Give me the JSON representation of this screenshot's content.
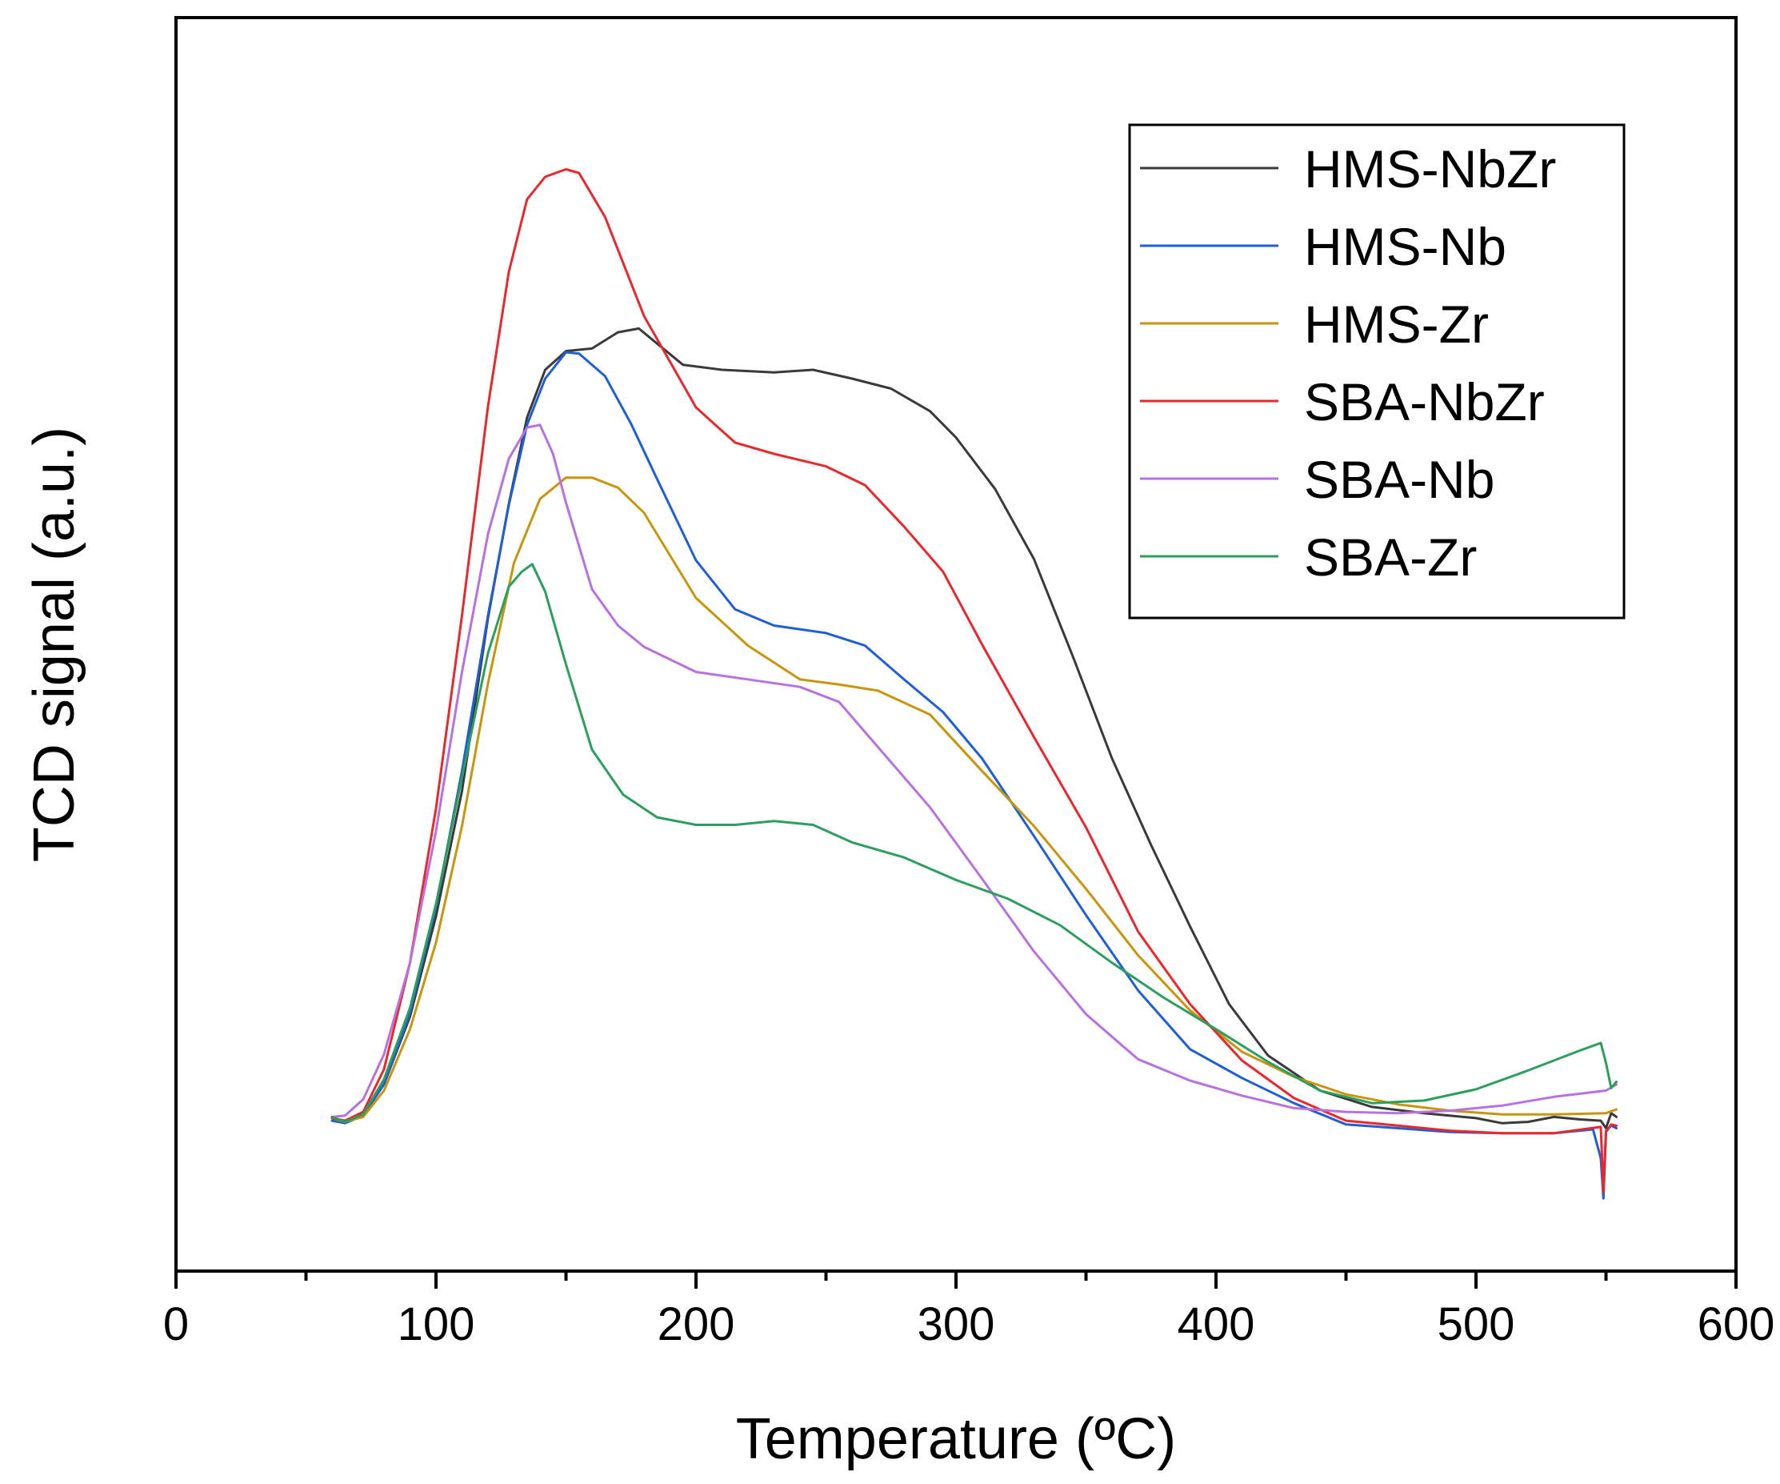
{
  "chart_data": {
    "type": "line",
    "xlabel": "Temperature (ºC)",
    "ylabel": "TCD signal (a.u.)",
    "xlim": [
      0,
      600
    ],
    "ylim": [
      0,
      100
    ],
    "xticks": [
      0,
      100,
      200,
      300,
      400,
      500,
      600
    ],
    "legend_position": "top-right",
    "series": [
      {
        "name": "HMS-NbZr",
        "color": "#3a3a3a",
        "x": [
          60,
          65,
          72,
          80,
          90,
          100,
          110,
          120,
          128,
          135,
          142,
          150,
          160,
          170,
          178,
          185,
          195,
          210,
          230,
          245,
          260,
          275,
          290,
          300,
          315,
          330,
          345,
          360,
          375,
          390,
          405,
          420,
          440,
          460,
          480,
          500,
          510,
          520,
          530,
          540,
          548,
          550,
          552,
          554
        ],
        "y": [
          12.3,
          11.9,
          12.5,
          14.9,
          20.3,
          28.3,
          38.3,
          52.1,
          61.2,
          68.1,
          71.9,
          73.4,
          73.6,
          74.9,
          75.2,
          74.0,
          72.3,
          71.9,
          71.7,
          71.9,
          71.2,
          70.4,
          68.6,
          66.5,
          62.4,
          56.8,
          49.0,
          40.9,
          34.0,
          27.5,
          21.3,
          17.2,
          14.4,
          13.1,
          12.6,
          12.2,
          11.8,
          11.9,
          12.3,
          12.1,
          12.0,
          11.4,
          12.6,
          12.3
        ]
      },
      {
        "name": "HMS-Nb",
        "color": "#1f5fd6",
        "x": [
          60,
          65,
          72,
          80,
          90,
          100,
          110,
          120,
          128,
          135,
          142,
          150,
          155,
          165,
          175,
          185,
          200,
          215,
          230,
          250,
          265,
          280,
          295,
          310,
          330,
          350,
          370,
          390,
          410,
          430,
          450,
          470,
          490,
          510,
          530,
          545,
          548,
          549,
          550,
          551,
          552,
          554
        ],
        "y": [
          12.0,
          11.8,
          12.4,
          14.9,
          20.6,
          29.1,
          39.9,
          52.3,
          61.1,
          67.5,
          71.2,
          73.3,
          73.2,
          71.4,
          67.6,
          63.2,
          56.7,
          52.8,
          51.5,
          50.9,
          49.9,
          47.2,
          44.6,
          40.9,
          34.7,
          28.4,
          22.4,
          17.7,
          15.4,
          13.4,
          11.7,
          11.4,
          11.1,
          11.0,
          11.0,
          11.3,
          9.0,
          5.8,
          11.1,
          11.4,
          11.6,
          11.4
        ]
      },
      {
        "name": "HMS-Zr",
        "color": "#c8950c",
        "x": [
          60,
          65,
          72,
          80,
          90,
          100,
          110,
          120,
          130,
          140,
          150,
          160,
          170,
          180,
          200,
          220,
          240,
          255,
          270,
          290,
          310,
          330,
          350,
          370,
          390,
          410,
          430,
          450,
          470,
          490,
          510,
          530,
          550,
          554
        ],
        "y": [
          12.2,
          11.9,
          12.3,
          14.4,
          19.3,
          26.2,
          35.5,
          46.9,
          56.5,
          61.6,
          63.3,
          63.3,
          62.5,
          60.5,
          53.7,
          49.9,
          47.2,
          46.8,
          46.3,
          44.4,
          39.9,
          35.5,
          30.5,
          25.2,
          20.8,
          17.5,
          15.5,
          14.1,
          13.3,
          12.8,
          12.5,
          12.5,
          12.6,
          12.9
        ]
      },
      {
        "name": "SBA-NbZr",
        "color": "#e8282c",
        "x": [
          60,
          65,
          72,
          80,
          90,
          100,
          110,
          120,
          128,
          135,
          142,
          150,
          155,
          165,
          180,
          200,
          215,
          230,
          250,
          265,
          280,
          295,
          310,
          330,
          350,
          370,
          390,
          410,
          430,
          450,
          470,
          490,
          510,
          530,
          548,
          549,
          550,
          551,
          552,
          554
        ],
        "y": [
          12.2,
          12.0,
          12.7,
          16.1,
          24.6,
          36.9,
          52.3,
          69.0,
          79.7,
          85.5,
          87.3,
          87.9,
          87.6,
          84.1,
          76.2,
          68.9,
          66.1,
          65.2,
          64.2,
          62.7,
          59.4,
          55.8,
          50.0,
          42.6,
          35.4,
          27.1,
          21.3,
          16.8,
          13.8,
          12.0,
          11.6,
          11.2,
          11.0,
          11.0,
          11.5,
          6.3,
          11.2,
          11.4,
          11.7,
          11.6
        ]
      },
      {
        "name": "SBA-Nb",
        "color": "#b772e0",
        "x": [
          60,
          65,
          72,
          80,
          90,
          100,
          110,
          120,
          128,
          135,
          140,
          145,
          150,
          160,
          170,
          180,
          200,
          220,
          240,
          255,
          270,
          290,
          310,
          330,
          350,
          370,
          390,
          410,
          430,
          450,
          470,
          490,
          510,
          530,
          550,
          554
        ],
        "y": [
          12.3,
          12.4,
          13.7,
          17.3,
          24.6,
          35.1,
          47.8,
          58.8,
          64.8,
          67.3,
          67.5,
          65.2,
          61.3,
          54.4,
          51.5,
          49.8,
          47.8,
          47.2,
          46.6,
          45.4,
          41.8,
          37.0,
          31.3,
          25.5,
          20.5,
          16.9,
          15.2,
          14.0,
          13.0,
          12.7,
          12.6,
          12.8,
          13.2,
          13.9,
          14.4,
          14.9
        ]
      },
      {
        "name": "SBA-Zr",
        "color": "#2c9e5e",
        "x": [
          60,
          65,
          72,
          80,
          90,
          100,
          110,
          120,
          128,
          133,
          137,
          142,
          150,
          160,
          172,
          185,
          200,
          215,
          230,
          245,
          260,
          280,
          300,
          320,
          340,
          360,
          380,
          400,
          420,
          440,
          460,
          480,
          500,
          520,
          540,
          548,
          550,
          552,
          554
        ],
        "y": [
          12.3,
          11.9,
          12.5,
          15.3,
          21.0,
          29.3,
          39.4,
          49.3,
          54.6,
          55.8,
          56.4,
          54.2,
          48.4,
          41.6,
          38.0,
          36.2,
          35.6,
          35.6,
          35.9,
          35.6,
          34.2,
          33.0,
          31.2,
          29.7,
          27.6,
          24.6,
          21.8,
          19.3,
          16.7,
          14.4,
          13.4,
          13.6,
          14.5,
          16.0,
          17.6,
          18.2,
          16.6,
          14.6,
          15.1
        ]
      }
    ]
  }
}
